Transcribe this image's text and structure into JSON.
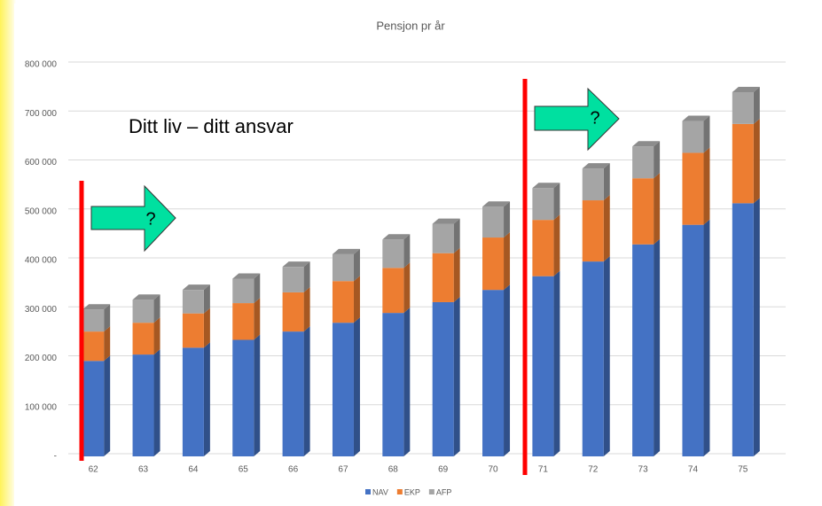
{
  "chart_data": {
    "type": "stacked_bar",
    "title": "Pensjon pr år",
    "annotations": [
      "Ditt liv – ditt ansvar",
      "?",
      "?"
    ],
    "categories": [
      "62",
      "63",
      "64",
      "65",
      "66",
      "67",
      "68",
      "69",
      "70",
      "71",
      "72",
      "73",
      "74",
      "75"
    ],
    "series": [
      {
        "name": "NAV",
        "color": "#4472c4",
        "values": [
          195000,
          208000,
          222000,
          238000,
          255000,
          273000,
          293000,
          315000,
          340000,
          368000,
          398000,
          433000,
          473000,
          517000
        ]
      },
      {
        "name": "EKP",
        "color": "#ed7d31",
        "values": [
          60000,
          65000,
          70000,
          75000,
          80000,
          85000,
          92000,
          100000,
          107000,
          115000,
          125000,
          135000,
          147000,
          162000
        ]
      },
      {
        "name": "AFP",
        "color": "#a5a5a5",
        "values": [
          45000,
          47000,
          48000,
          50000,
          52000,
          55000,
          58000,
          60000,
          63000,
          65000,
          65000,
          65000,
          65000,
          65000
        ]
      }
    ],
    "ylim": [
      0,
      800000
    ],
    "yticks": [
      {
        "value": 0,
        "label": "-"
      },
      {
        "value": 100000,
        "label": "100 000"
      },
      {
        "value": 200000,
        "label": "200 000"
      },
      {
        "value": 300000,
        "label": "300 000"
      },
      {
        "value": 400000,
        "label": "400 000"
      },
      {
        "value": 500000,
        "label": "500 000"
      },
      {
        "value": 600000,
        "label": "600 000"
      },
      {
        "value": 700000,
        "label": "700 000"
      },
      {
        "value": 800000,
        "label": "800 000"
      }
    ],
    "grid": true,
    "legend": "bottom"
  }
}
